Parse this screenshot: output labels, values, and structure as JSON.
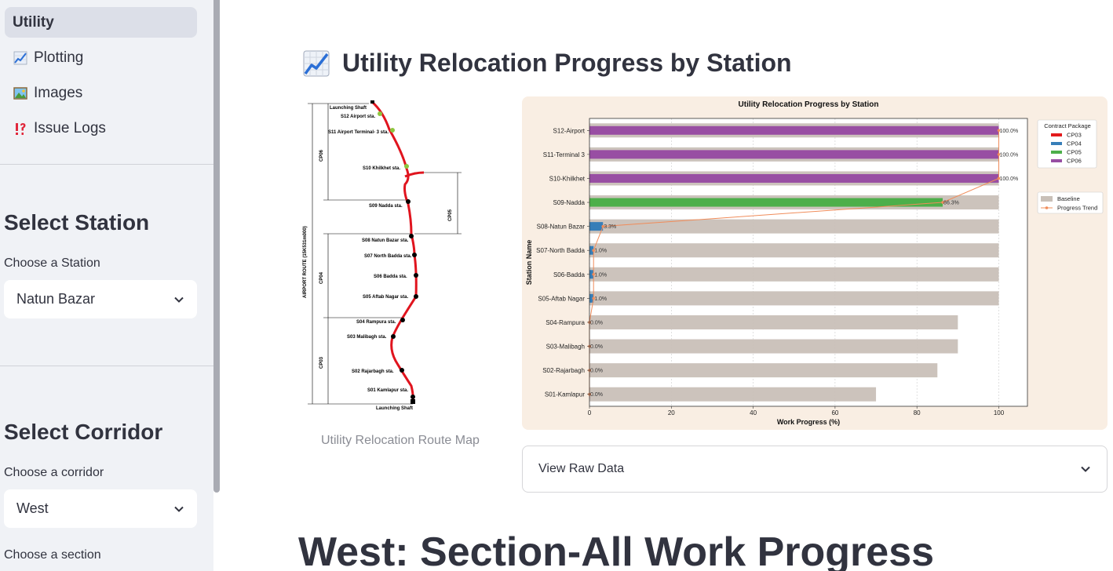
{
  "sidebar": {
    "nav": [
      {
        "label": "Utility",
        "icon": "",
        "active": true
      },
      {
        "label": "Plotting",
        "icon": "chart-increasing-icon",
        "active": false
      },
      {
        "label": "Images",
        "icon": "framed-picture-icon",
        "active": false
      },
      {
        "label": "Issue Logs",
        "icon": "exclamation-question-icon",
        "active": false
      }
    ],
    "station": {
      "heading": "Select Station",
      "label": "Choose a Station",
      "value": "Natun Bazar"
    },
    "corridor": {
      "heading": "Select Corridor",
      "label": "Choose a corridor",
      "value": "West"
    },
    "section": {
      "label": "Choose a section"
    }
  },
  "main": {
    "title": "Utility Relocation Progress by Station",
    "map_caption": "Utility Relocation Route Map",
    "expander_label": "View Raw Data",
    "section_title": "West: Section-All Work Progress"
  },
  "route_map": {
    "axis_label": "AIRPORT ROUTE (15K531m000)",
    "stations": [
      "Launching Shaft",
      "S12 Airport sta.",
      "S11 Airport Terminal- 3 sta.",
      "S10 Khilkhet sta.",
      "S09 Nadda sta.",
      "S08 Natun Bazar sta.",
      "S07 North Badda sta.",
      "S06 Badda sta.",
      "S05 Aftab Nagar sta.",
      "S04 Rampura sta.",
      "S03 Malibagh sta.",
      "S02 Rajarbagh sta.",
      "S01 Kamlapur sta.",
      "Launching Shaft"
    ],
    "packages": [
      "CP06",
      "CP05",
      "CP04",
      "CP03"
    ]
  },
  "chart_data": {
    "type": "bar",
    "title": "Utility Relocation Progress by Station",
    "xlabel": "Work Progress (%)",
    "ylabel": "Station Name",
    "xlim": [
      0,
      107
    ],
    "xticks": [
      0,
      20,
      40,
      60,
      80,
      100
    ],
    "grid": true,
    "categories": [
      "S12-Airport",
      "S11-Terminal 3",
      "S10-Khilkhet",
      "S09-Nadda",
      "S08-Natun Bazar",
      "S07-North Badda",
      "S06-Badda",
      "S05-Aftab Nagar",
      "S04-Rampura",
      "S03-Malibagh",
      "S02-Rajarbagh",
      "S01-Kamlapur"
    ],
    "progress": [
      100.0,
      100.0,
      100.0,
      86.3,
      3.3,
      1.0,
      1.0,
      1.0,
      0.0,
      0.0,
      0.0,
      0.0
    ],
    "progress_labels": [
      "100.0%",
      "100.0%",
      "100.0%",
      "86.3%",
      "3.3%",
      "1.0%",
      "1.0%",
      "1.0%",
      "0.0%",
      "0.0%",
      "0.0%",
      "0.0%"
    ],
    "baseline": [
      100,
      100,
      100,
      100,
      100,
      100,
      100,
      100,
      90,
      90,
      85,
      70
    ],
    "package": [
      "CP06",
      "CP06",
      "CP06",
      "CP05",
      "CP04",
      "CP04",
      "CP04",
      "CP04",
      "CP03",
      "CP03",
      "CP03",
      "CP03"
    ],
    "legend_title": "Contract Package",
    "legend_packages": [
      {
        "name": "CP03",
        "color": "#e31a1c"
      },
      {
        "name": "CP04",
        "color": "#377eb8"
      },
      {
        "name": "CP05",
        "color": "#4daf4a"
      },
      {
        "name": "CP06",
        "color": "#984ea3"
      }
    ],
    "legend_extra": [
      {
        "name": "Baseline",
        "color": "#c9c0b8"
      },
      {
        "name": "Progress Trend",
        "color": "#f08c5a"
      }
    ],
    "legend_placement": "right"
  }
}
